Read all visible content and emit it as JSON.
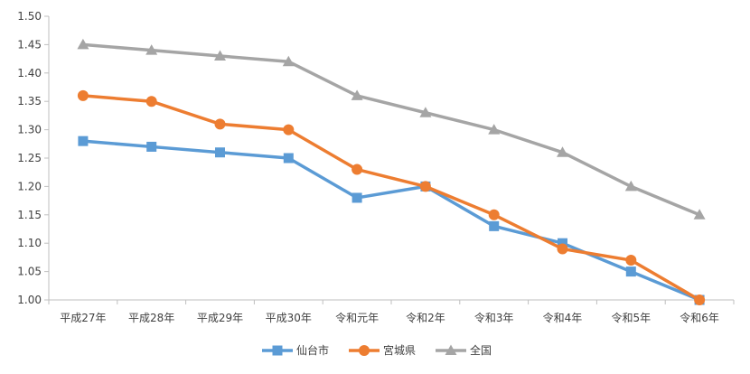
{
  "chart_data": {
    "type": "line",
    "title": "",
    "xlabel": "",
    "ylabel": "",
    "categories": [
      "平成27年",
      "平成28年",
      "平成29年",
      "平成30年",
      "令和元年",
      "令和2年",
      "令和3年",
      "令和4年",
      "令和5年",
      "令和6年"
    ],
    "series": [
      {
        "name": "仙台市",
        "color": "#5B9BD5",
        "marker": "square",
        "values": [
          1.28,
          1.27,
          1.26,
          1.25,
          1.18,
          1.2,
          1.13,
          1.1,
          1.05,
          1.0
        ]
      },
      {
        "name": "宮城県",
        "color": "#ED7D31",
        "marker": "circle",
        "values": [
          1.36,
          1.35,
          1.31,
          1.3,
          1.23,
          1.2,
          1.15,
          1.09,
          1.07,
          1.0
        ]
      },
      {
        "name": "全国",
        "color": "#A5A5A5",
        "marker": "triangle",
        "values": [
          1.45,
          1.44,
          1.43,
          1.42,
          1.36,
          1.33,
          1.3,
          1.26,
          1.2,
          1.15
        ]
      }
    ],
    "ylim": [
      1.0,
      1.5
    ],
    "yticks": [
      "1.00",
      "1.05",
      "1.10",
      "1.15",
      "1.20",
      "1.25",
      "1.30",
      "1.35",
      "1.40",
      "1.45",
      "1.50"
    ],
    "grid": false,
    "legend": "bottom-center"
  }
}
